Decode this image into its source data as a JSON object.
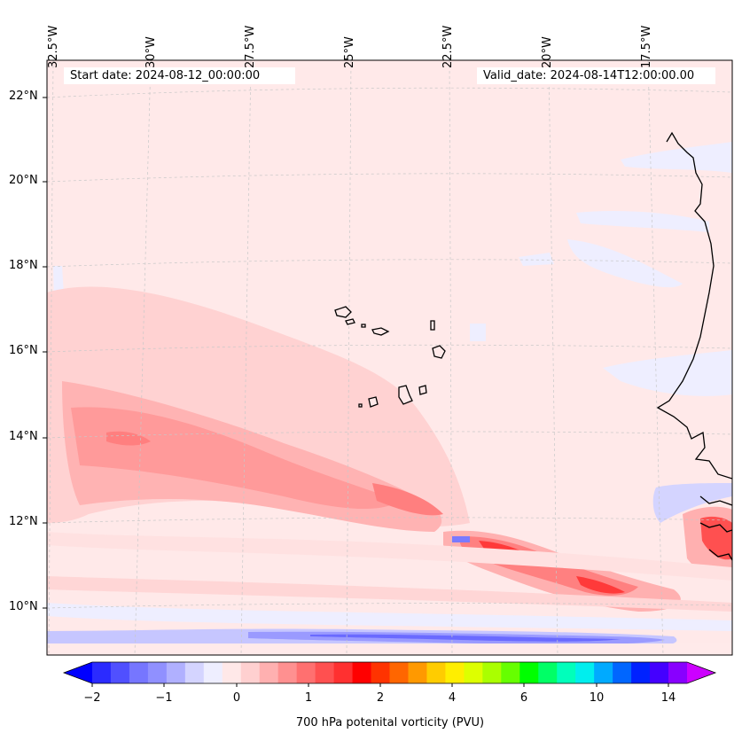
{
  "map": {
    "start_date": "Start date: 2024-08-12_00:00:00",
    "valid_date": "Valid_date: 2024-08-14T12:00:00.00",
    "lon_labels": [
      "32.5°W",
      "30°W",
      "27.5°W",
      "25°W",
      "22.5°W",
      "20°W",
      "17.5°W"
    ],
    "lat_labels": [
      "22°N",
      "20°N",
      "18°N",
      "16°N",
      "14°N",
      "12°N",
      "10°N"
    ],
    "field": "700 hPa potential vorticity",
    "region": "Eastern tropical Atlantic, Cape Verde Islands and West African coast"
  },
  "colorbar": {
    "label": "700 hPa potenital vorticity (PVU)",
    "ticks": [
      "−2",
      "−1",
      "0",
      "1",
      "2",
      "4",
      "6",
      "10",
      "14"
    ],
    "colors": [
      "#0000ff",
      "#2b2bff",
      "#5050ff",
      "#7676ff",
      "#9090ff",
      "#b0b0ff",
      "#d4d4ff",
      "#eeeeff",
      "#ffe8e8",
      "#ffd0d0",
      "#ffb0b0",
      "#ff9090",
      "#ff7070",
      "#ff5050",
      "#ff3030",
      "#ff0000",
      "#ff3300",
      "#ff6600",
      "#ff9900",
      "#ffcc00",
      "#ffee00",
      "#ddff00",
      "#aaff00",
      "#66ff00",
      "#00ff00",
      "#00ff66",
      "#00ffbb",
      "#00eeee",
      "#00aaff",
      "#0066ff",
      "#0022ff",
      "#4400ff",
      "#8800ff",
      "#cc00ff"
    ]
  }
}
